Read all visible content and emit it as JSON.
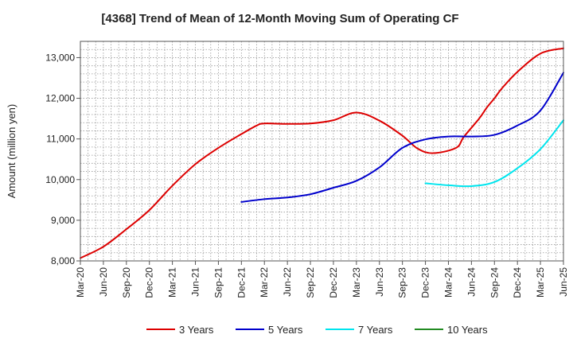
{
  "chart_data": {
    "type": "line",
    "title": "[4368]  Trend of Mean of 12-Month Moving Sum of Operating CF",
    "xlabel": "",
    "ylabel": "Amount (million yen)",
    "ylim": [
      8000,
      13400
    ],
    "yticks": [
      8000,
      9000,
      10000,
      11000,
      12000,
      13000
    ],
    "ytick_labels": [
      "8,000",
      "9,000",
      "10,000",
      "11,000",
      "12,000",
      "13,000"
    ],
    "x_tick_labels": [
      "Mar-20",
      "Jun-20",
      "Sep-20",
      "Dec-20",
      "Mar-21",
      "Jun-21",
      "Sep-21",
      "Dec-21",
      "Mar-22",
      "Jun-22",
      "Sep-22",
      "Dec-22",
      "Mar-23",
      "Jun-23",
      "Sep-23",
      "Dec-23",
      "Mar-24",
      "Jun-24",
      "Sep-24",
      "Dec-24",
      "Mar-25",
      "Jun-25"
    ],
    "x_range": [
      0,
      63
    ],
    "grid": true,
    "legend_position": "bottom",
    "series": [
      {
        "name": "3 Years",
        "color": "#dd0000",
        "x": [
          0,
          3,
          6,
          9,
          12,
          15,
          18,
          21,
          23,
          24,
          27,
          30,
          33,
          36,
          39,
          42,
          44,
          46,
          49,
          50,
          52,
          53,
          54,
          55,
          57,
          60,
          63
        ],
        "values": [
          8070,
          8350,
          8780,
          9250,
          9850,
          10380,
          10780,
          11120,
          11330,
          11380,
          11370,
          11380,
          11460,
          11650,
          11450,
          11080,
          10760,
          10650,
          10780,
          11050,
          11500,
          11770,
          12000,
          12250,
          12650,
          13100,
          13230
        ]
      },
      {
        "name": "5 Years",
        "color": "#0000cc",
        "x": [
          21,
          24,
          27,
          30,
          33,
          36,
          39,
          42,
          45,
          48,
          51,
          54,
          57,
          60,
          63
        ],
        "values": [
          9450,
          9520,
          9560,
          9640,
          9800,
          9970,
          10300,
          10780,
          10990,
          11060,
          11060,
          11100,
          11330,
          11700,
          12630
        ]
      },
      {
        "name": "7 Years",
        "color": "#00e5ee",
        "x": [
          45,
          48,
          51,
          54,
          57,
          60,
          63
        ],
        "values": [
          9910,
          9860,
          9840,
          9940,
          10280,
          10750,
          11460
        ]
      },
      {
        "name": "10 Years",
        "color": "#228b22",
        "x": [],
        "values": []
      }
    ]
  }
}
